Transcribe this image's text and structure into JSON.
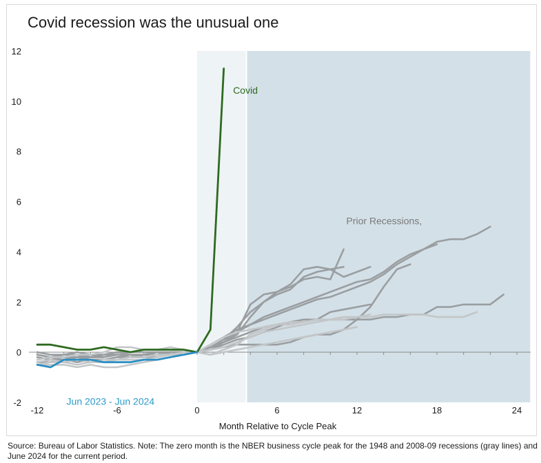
{
  "chart_data": {
    "type": "line",
    "title": "Covid recession was the unusual one",
    "xlabel": "Month Relative to Cycle Peak",
    "ylabel": "",
    "xlim": [
      -13,
      25
    ],
    "ylim": [
      -2,
      12
    ],
    "xticks": [
      -12,
      -6,
      0,
      6,
      12,
      18,
      24
    ],
    "yticks": [
      -2,
      0,
      2,
      4,
      6,
      8,
      10,
      12
    ],
    "xtick_labels": [
      "-12",
      "-6",
      "0",
      "6",
      "12",
      "18",
      "24"
    ],
    "ytick_labels": [
      "-2",
      "0",
      "2",
      "4",
      "6",
      "8",
      "10",
      "12"
    ],
    "shaded_regions": [
      {
        "x0": 0,
        "x1": 3.7,
        "color": "#eef3f6"
      },
      {
        "x0": 3.7,
        "x1": 25,
        "color": "#d3e0e7"
      }
    ],
    "annotations": [
      {
        "text": "Covid",
        "x": 2.7,
        "y": 10.3,
        "color": "#2d6a1f"
      },
      {
        "text": "Prior Recessions,",
        "x": 11.2,
        "y": 5.1,
        "color": "#7a7a7a"
      },
      {
        "text": "Jun 2023 - Jun 2024",
        "x": -9.8,
        "y": -2.1,
        "color": "#2b9bcc"
      }
    ],
    "series": [
      {
        "name": "",
        "color": "#9a9ea1",
        "x": [
          -12,
          -11,
          -10,
          -9,
          -8,
          -7,
          -6,
          -5,
          -4,
          -3,
          -2,
          -1,
          0,
          1,
          2,
          3,
          4,
          5,
          6,
          7,
          8,
          9,
          10,
          11,
          12,
          13,
          14,
          15,
          16,
          17,
          18
        ],
        "y": [
          -0.2,
          -0.3,
          -0.3,
          -0.2,
          -0.3,
          -0.3,
          -0.2,
          -0.2,
          -0.2,
          -0.1,
          -0.1,
          0,
          0,
          0.3,
          0.6,
          0.9,
          1.1,
          1.4,
          1.6,
          1.8,
          2.0,
          2.2,
          2.4,
          2.6,
          2.8,
          2.9,
          3.2,
          3.6,
          3.9,
          4.1,
          4.3
        ]
      },
      {
        "name": "",
        "color": "#9a9ea1",
        "x": [
          -12,
          -11,
          -10,
          -9,
          -8,
          -7,
          -6,
          -5,
          -4,
          -3,
          -2,
          -1,
          0,
          1,
          2,
          3,
          4,
          5,
          6,
          7,
          8,
          9,
          10,
          11,
          12,
          13,
          14,
          15,
          16,
          17,
          18,
          19,
          20,
          21,
          22
        ],
        "y": [
          -0.4,
          -0.3,
          -0.3,
          -0.2,
          -0.2,
          -0.1,
          -0.1,
          -0.2,
          -0.2,
          -0.1,
          0,
          0,
          0,
          0.2,
          0.5,
          0.8,
          1.1,
          1.3,
          1.5,
          1.7,
          1.9,
          2.1,
          2.2,
          2.4,
          2.6,
          2.8,
          3.1,
          3.5,
          3.8,
          4.1,
          4.4,
          4.5,
          4.5,
          4.7,
          5.0
        ]
      },
      {
        "name": "",
        "color": "#9a9ea1",
        "x": [
          -12,
          -11,
          -10,
          -9,
          -8,
          -7,
          -6,
          -5,
          -4,
          -3,
          -2,
          -1,
          0,
          1,
          2,
          3,
          4,
          5,
          6,
          7,
          8,
          9,
          10,
          11
        ],
        "y": [
          -0.3,
          -0.2,
          -0.2,
          -0.3,
          -0.2,
          -0.2,
          -0.1,
          -0.1,
          -0.2,
          -0.2,
          -0.1,
          0,
          0,
          0.1,
          0.4,
          0.8,
          1.9,
          2.3,
          2.4,
          2.7,
          3.3,
          3.4,
          3.3,
          3.4
        ]
      },
      {
        "name": "",
        "color": "#9a9ea1",
        "x": [
          -12,
          -11,
          -10,
          -9,
          -8,
          -7,
          -6,
          -5,
          -4,
          -3,
          -2,
          -1,
          0,
          1,
          2,
          3,
          4,
          5,
          6,
          7,
          8,
          9,
          10,
          11,
          12,
          13
        ],
        "y": [
          -0.1,
          -0.2,
          -0.1,
          -0.1,
          -0.2,
          -0.2,
          -0.1,
          -0.1,
          -0.1,
          0,
          -0.1,
          0,
          0,
          0.2,
          0.5,
          1.0,
          1.6,
          2.0,
          2.3,
          2.5,
          3.0,
          3.2,
          3.3,
          3.0,
          3.2,
          3.4
        ]
      },
      {
        "name": "",
        "color": "#9a9ea1",
        "x": [
          -12,
          -11,
          -10,
          -9,
          -8,
          -7,
          -6,
          -5,
          -4,
          -3,
          -2,
          -1,
          0,
          1,
          2,
          3,
          4,
          5,
          6,
          7,
          8,
          9,
          10,
          11
        ],
        "y": [
          -0.2,
          -0.3,
          -0.2,
          -0.2,
          -0.1,
          -0.2,
          -0.1,
          -0.1,
          -0.1,
          -0.1,
          0,
          0,
          0,
          0.2,
          0.4,
          0.7,
          1.4,
          2.0,
          2.4,
          2.6,
          2.9,
          3.0,
          2.9,
          4.1
        ]
      },
      {
        "name": "",
        "color": "#9a9ea1",
        "x": [
          -12,
          -11,
          -10,
          -9,
          -8,
          -7,
          -6,
          -5,
          -4,
          -3,
          -2,
          -1,
          0,
          1,
          2,
          3,
          4,
          5,
          6,
          7,
          8,
          9,
          10,
          11,
          12,
          13,
          14,
          15,
          16
        ],
        "y": [
          0,
          -0.1,
          -0.1,
          0,
          -0.1,
          -0.1,
          0,
          -0.1,
          -0.1,
          0,
          0,
          0,
          0,
          0.1,
          0.2,
          0.3,
          0.3,
          0.3,
          0.3,
          0.4,
          0.6,
          0.7,
          0.7,
          0.9,
          1.3,
          1.8,
          2.6,
          3.3,
          3.5
        ]
      },
      {
        "name": "",
        "color": "#9a9ea1",
        "x": [
          -12,
          -11,
          -10,
          -9,
          -8,
          -7,
          -6,
          -5,
          -4,
          -3,
          -2,
          -1,
          0,
          1,
          2,
          3,
          4,
          5,
          6,
          7,
          8,
          9,
          10,
          11,
          12,
          13
        ],
        "y": [
          -0.1,
          -0.2,
          -0.2,
          -0.1,
          -0.1,
          -0.1,
          0,
          0,
          0,
          0,
          0,
          0,
          0,
          0.1,
          0.3,
          0.5,
          0.6,
          0.8,
          1.0,
          1.2,
          1.3,
          1.3,
          1.6,
          1.7,
          1.8,
          1.9
        ]
      },
      {
        "name": "",
        "color": "#9a9ea1",
        "x": [
          -12,
          -11,
          -10,
          -9,
          -8,
          -7,
          -6,
          -5,
          -4,
          -3,
          -2,
          -1,
          0,
          1,
          2,
          3,
          4,
          5,
          6,
          7,
          8,
          9,
          10,
          11,
          12,
          13,
          14,
          15,
          16,
          17,
          18,
          19,
          20,
          21,
          22,
          23
        ],
        "y": [
          -0.4,
          -0.4,
          -0.3,
          -0.4,
          -0.3,
          -0.3,
          -0.2,
          -0.2,
          -0.1,
          -0.1,
          -0.1,
          0,
          0,
          0.2,
          0.4,
          0.6,
          0.8,
          1.0,
          1.1,
          1.2,
          1.2,
          1.3,
          1.3,
          1.3,
          1.3,
          1.3,
          1.4,
          1.4,
          1.5,
          1.5,
          1.8,
          1.8,
          1.9,
          1.9,
          1.9,
          2.3
        ]
      },
      {
        "name": "",
        "color": "#c3c6c8",
        "x": [
          -12,
          -11,
          -10,
          -9,
          -8,
          -7,
          -6,
          -5,
          -4,
          -3,
          -2,
          -1,
          0,
          1,
          2,
          3,
          4,
          5,
          6,
          7,
          8,
          9,
          10,
          11,
          12,
          13,
          14,
          15,
          16,
          17,
          18,
          19,
          20,
          21
        ],
        "y": [
          -0.5,
          -0.4,
          -0.4,
          -0.5,
          -0.4,
          -0.3,
          -0.3,
          -0.2,
          -0.2,
          -0.1,
          -0.1,
          0,
          0,
          0.1,
          0.2,
          0.4,
          0.6,
          0.8,
          0.9,
          1.0,
          1.1,
          1.2,
          1.3,
          1.4,
          1.4,
          1.4,
          1.5,
          1.5,
          1.5,
          1.5,
          1.4,
          1.4,
          1.4,
          1.6
        ]
      },
      {
        "name": "",
        "color": "#c3c6c8",
        "x": [
          -12,
          -11,
          -10,
          -9,
          -8,
          -7,
          -6,
          -5,
          -4,
          -3,
          -2,
          -1,
          0,
          1,
          2,
          3,
          4,
          5,
          6,
          7,
          8,
          9,
          10,
          11,
          12,
          13
        ],
        "y": [
          -0.3,
          -0.2,
          -0.2,
          -0.1,
          -0.1,
          0,
          0.2,
          0.2,
          0.1,
          0.1,
          0.2,
          0.1,
          0,
          0.3,
          0.6,
          0.8,
          0.9,
          1.0,
          1.1,
          1.2,
          1.2,
          1.3,
          1.3,
          1.3,
          1.4,
          1.5
        ]
      },
      {
        "name": "",
        "color": "#c3c6c8",
        "x": [
          -12,
          -11,
          -10,
          -9,
          -8,
          -7,
          -6,
          -5,
          -4,
          -3,
          -2,
          -1,
          0,
          1,
          2,
          3,
          4,
          5,
          6,
          7,
          8,
          9,
          10,
          11
        ],
        "y": [
          -0.4,
          -0.3,
          -0.4,
          -0.3,
          -0.4,
          -0.4,
          -0.3,
          -0.3,
          -0.3,
          -0.2,
          -0.1,
          -0.1,
          0,
          -0.1,
          0.1,
          0.3,
          0.7,
          0.9,
          1.1,
          1.1,
          1.2,
          1.3,
          1.3,
          1.4
        ]
      },
      {
        "name": "",
        "color": "#c3c6c8",
        "x": [
          -12,
          -11,
          -10,
          -9,
          -8,
          -7,
          -6,
          -5,
          -4,
          -3,
          -2,
          -1,
          0,
          1,
          2,
          3,
          4,
          5,
          6,
          7,
          8,
          9,
          10,
          11,
          12
        ],
        "y": [
          -0.5,
          -0.5,
          -0.5,
          -0.6,
          -0.5,
          -0.6,
          -0.6,
          -0.5,
          -0.4,
          -0.3,
          -0.2,
          -0.1,
          0,
          -0.1,
          0,
          0.1,
          0.2,
          0.3,
          0.4,
          0.5,
          0.6,
          0.7,
          0.8,
          0.9,
          1.0
        ]
      },
      {
        "name": "",
        "color": "#2d6a1f",
        "x": [
          -12,
          -11,
          -10,
          -9,
          -8,
          -7,
          -6,
          -5,
          -4,
          -3,
          -2,
          -1,
          0,
          1,
          2
        ],
        "y": [
          0.3,
          0.3,
          0.2,
          0.1,
          0.1,
          0.2,
          0.1,
          0,
          0.1,
          0.1,
          0.1,
          0.1,
          0,
          0.9,
          11.3
        ]
      },
      {
        "name": "",
        "color": "#2b8ec2",
        "x": [
          -12,
          -11,
          -10,
          -9,
          -8,
          -7,
          -6,
          -5,
          -4,
          -3,
          -2,
          -1,
          0
        ],
        "y": [
          -0.5,
          -0.6,
          -0.3,
          -0.3,
          -0.3,
          -0.4,
          -0.4,
          -0.4,
          -0.3,
          -0.3,
          -0.2,
          -0.1,
          0
        ]
      }
    ]
  },
  "source_note": "Source: Bureau of Labor Statistics. Note: The zero month is the NBER business cycle peak for the 1948 and 2008-09 recessions (gray lines) and June 2024 for the current period."
}
